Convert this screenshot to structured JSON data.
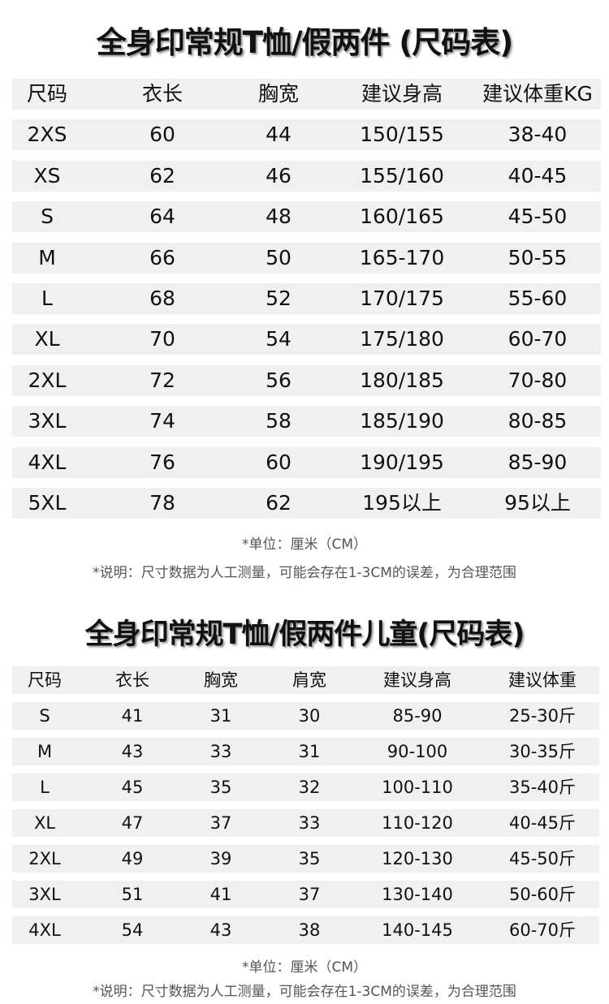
{
  "adult": {
    "title": "全身印常规T恤/假两件 (尺码表)",
    "headers": [
      "尺码",
      "衣长",
      "胸宽",
      "建议身高",
      "建议体重KG"
    ],
    "rows": [
      [
        "2XS",
        "60",
        "44",
        "150/155",
        "38-40"
      ],
      [
        "XS",
        "62",
        "46",
        "155/160",
        "40-45"
      ],
      [
        "S",
        "64",
        "48",
        "160/165",
        "45-50"
      ],
      [
        "M",
        "66",
        "50",
        "165-170",
        "50-55"
      ],
      [
        "L",
        "68",
        "52",
        "170/175",
        "55-60"
      ],
      [
        "XL",
        "70",
        "54",
        "175/180",
        "60-70"
      ],
      [
        "2XL",
        "72",
        "56",
        "180/185",
        "70-80"
      ],
      [
        "3XL",
        "74",
        "58",
        "185/190",
        "80-85"
      ],
      [
        "4XL",
        "76",
        "60",
        "190/195",
        "85-90"
      ],
      [
        "5XL",
        "78",
        "62",
        "195以上",
        "95以上"
      ]
    ],
    "unit_note": "*单位：厘米（CM）",
    "explain_note": "*说明：尺寸数据为人工测量，可能会存在1-3CM的误差，为合理范围"
  },
  "kids": {
    "title": "全身印常规T恤/假两件儿童(尺码表)",
    "headers": [
      "尺码",
      "衣长",
      "胸宽",
      "肩宽",
      "建议身高",
      "建议体重"
    ],
    "rows": [
      [
        "S",
        "41",
        "31",
        "30",
        "85-90",
        "25-30斤"
      ],
      [
        "M",
        "43",
        "33",
        "31",
        "90-100",
        "30-35斤"
      ],
      [
        "L",
        "45",
        "35",
        "32",
        "100-110",
        "35-40斤"
      ],
      [
        "XL",
        "47",
        "37",
        "33",
        "110-120",
        "40-45斤"
      ],
      [
        "2XL",
        "49",
        "39",
        "35",
        "120-130",
        "45-50斤"
      ],
      [
        "3XL",
        "51",
        "41",
        "37",
        "130-140",
        "50-60斤"
      ],
      [
        "4XL",
        "54",
        "43",
        "38",
        "140-145",
        "60-70斤"
      ]
    ],
    "unit_note": "*单位：厘米（CM）",
    "explain_note": "*说明：尺寸数据为人工测量，可能会存在1-3CM的误差，为合理范围"
  }
}
